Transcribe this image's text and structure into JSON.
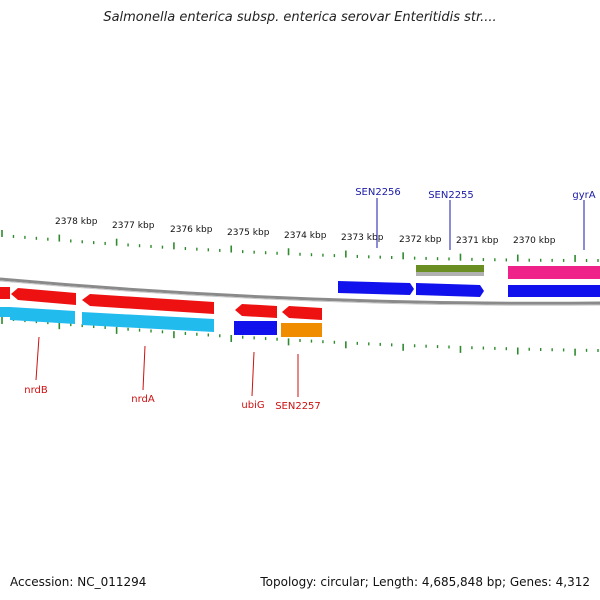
{
  "title": "Salmonella enterica subsp. enterica serovar Enteritidis str....",
  "accession_text": "Accession: NC_011294",
  "summary_text": "Topology: circular; Length: 4,685,848 bp; Genes: 4,312",
  "colors": {
    "backbone": "#8a8a8a",
    "tick": "#2e8b2e",
    "label_top": "#1a1aa8",
    "label_bottom": "#cc1111",
    "red": "#ee1111",
    "blue": "#1111ee",
    "cyan": "#22bbee",
    "orange": "#f08c00",
    "olive": "#6b8e23",
    "magenta": "#ee2288"
  },
  "scale_labels": [
    "2378 kbp",
    "2377 kbp",
    "2376 kbp",
    "2375 kbp",
    "2374 kbp",
    "2373 kbp",
    "2372 kbp",
    "2371 kbp",
    "2370 kbp"
  ],
  "top_gene_labels": [
    "SEN2256",
    "SEN2255",
    "gyrA"
  ],
  "bottom_gene_labels": [
    "nrdB",
    "nrdA",
    "ubiG",
    "SEN2257"
  ]
}
